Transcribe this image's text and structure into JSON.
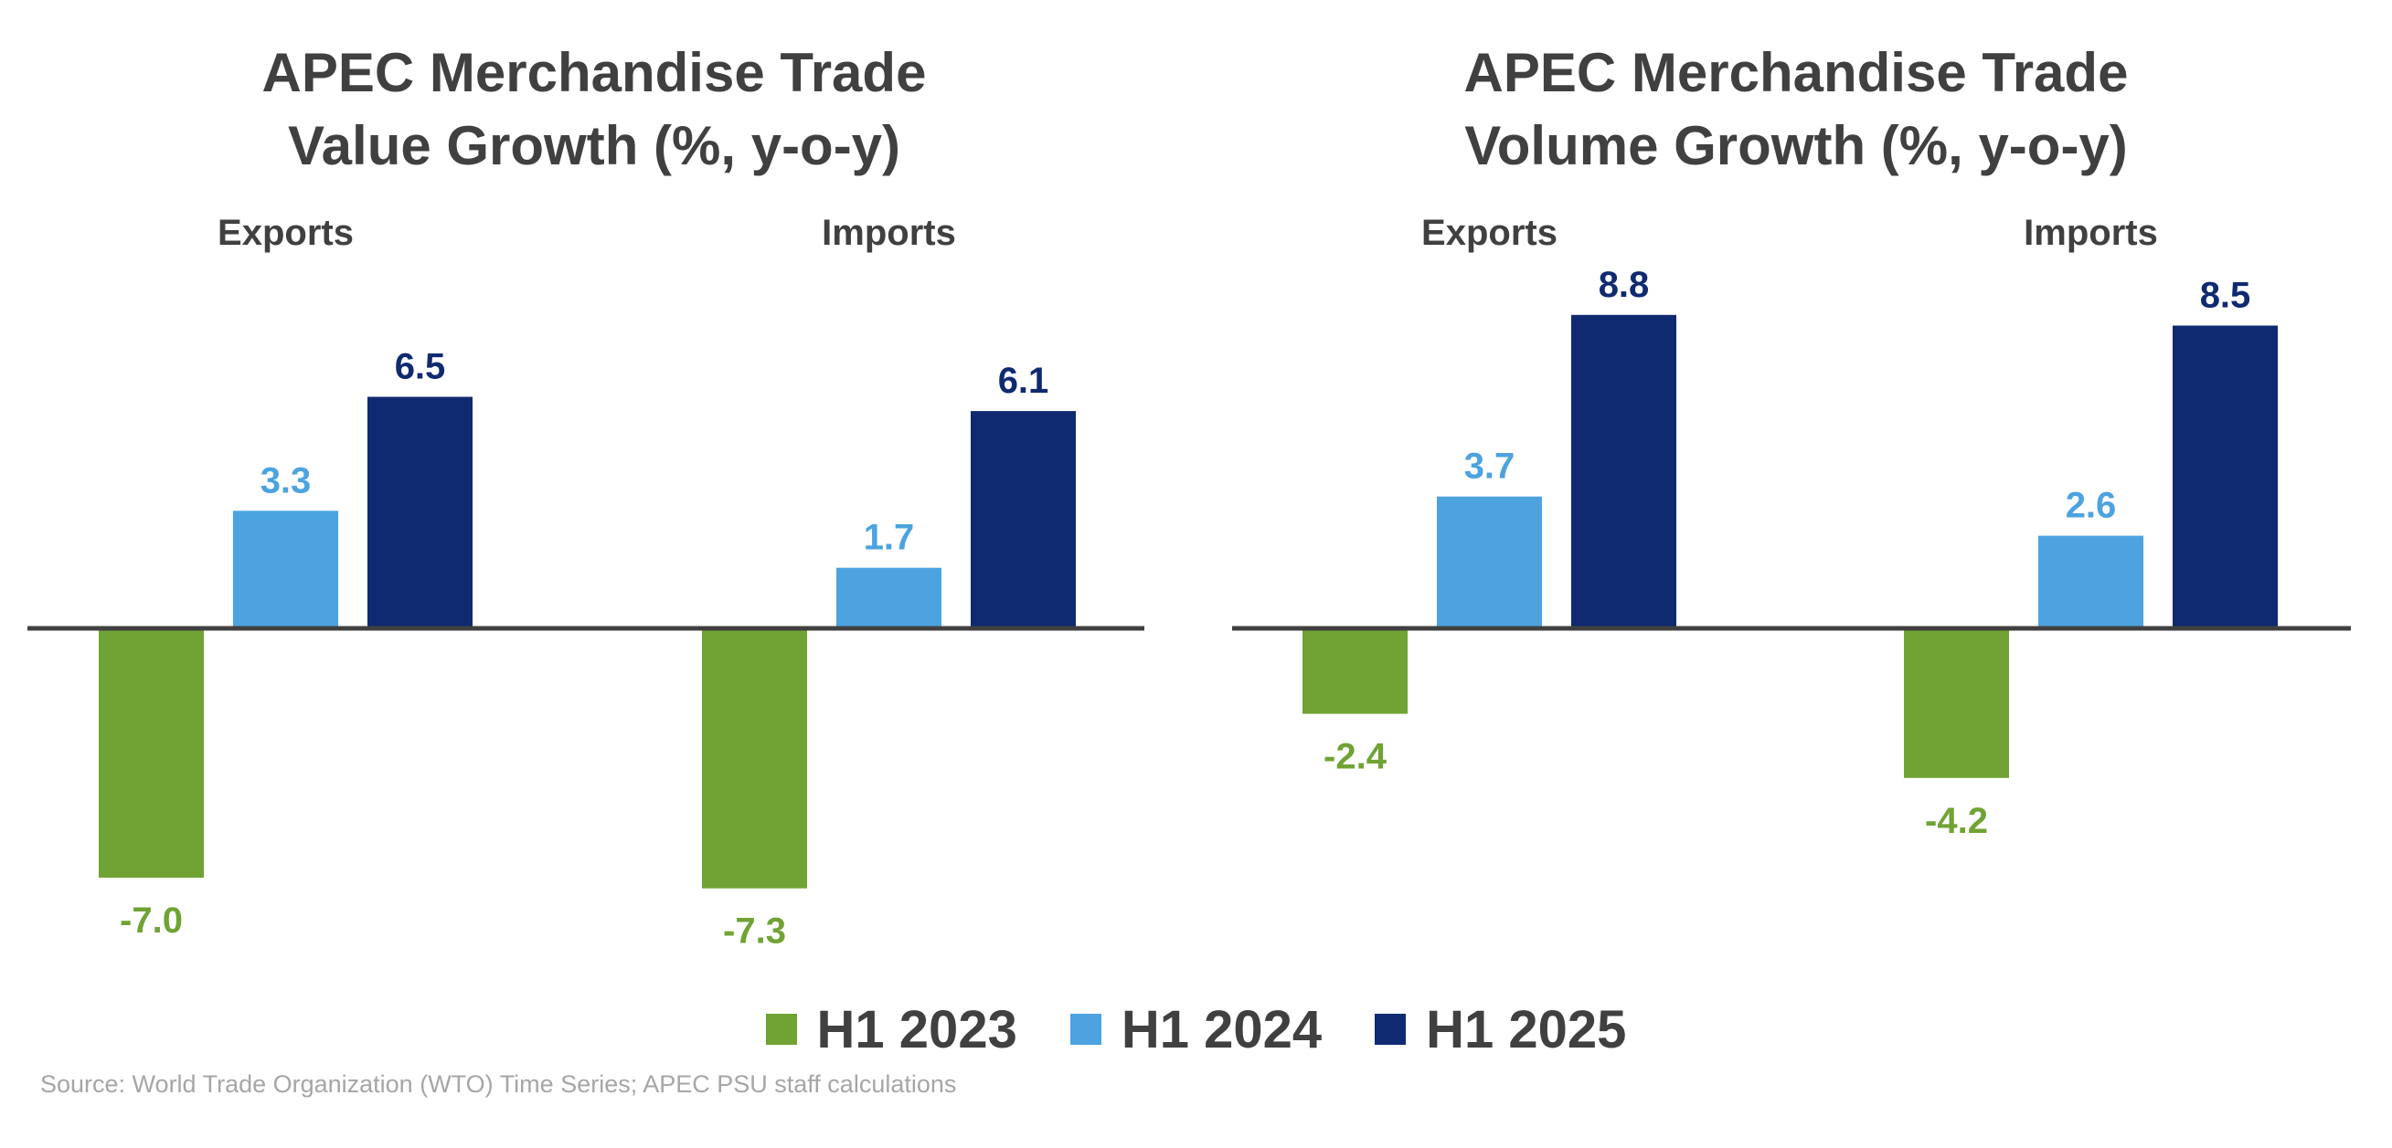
{
  "colors": {
    "H1 2023": "#70a334",
    "H1 2024": "#4ca3e0",
    "H1 2025": "#0f2a70",
    "axis": "#404040",
    "title": "#404040"
  },
  "chart_data": [
    {
      "type": "bar",
      "title_lines": [
        "APEC Merchandise Trade",
        "Value Growth (%, y-o-y)"
      ],
      "categories": [
        "Exports",
        "Imports"
      ],
      "series": [
        {
          "name": "H1 2023",
          "values": [
            -7.0,
            -7.3
          ]
        },
        {
          "name": "H1 2024",
          "values": [
            3.3,
            1.7
          ]
        },
        {
          "name": "H1 2025",
          "values": [
            6.5,
            6.1
          ]
        }
      ],
      "labels": [
        [
          "-7.0",
          "3.3",
          "6.5"
        ],
        [
          "-7.3",
          "1.7",
          "6.1"
        ]
      ],
      "ylim": [
        -10,
        10
      ]
    },
    {
      "type": "bar",
      "title_lines": [
        "APEC Merchandise Trade",
        "Volume Growth (%, y-o-y)"
      ],
      "categories": [
        "Exports",
        "Imports"
      ],
      "series": [
        {
          "name": "H1 2023",
          "values": [
            -2.4,
            -4.2
          ]
        },
        {
          "name": "H1 2024",
          "values": [
            3.7,
            2.6
          ]
        },
        {
          "name": "H1 2025",
          "values": [
            8.8,
            8.5
          ]
        }
      ],
      "labels": [
        [
          "-2.4",
          "3.7",
          "8.8"
        ],
        [
          "-4.2",
          "2.6",
          "8.5"
        ]
      ],
      "ylim": [
        -10,
        10
      ]
    }
  ],
  "legend": [
    {
      "name": "H1 2023",
      "label": "H1  2023"
    },
    {
      "name": "H1 2024",
      "label": "H1  2024"
    },
    {
      "name": "H1 2025",
      "label": "H1  2025"
    }
  ],
  "source": "Source: World Trade Organization (WTO) Time Series; APEC PSU staff calculations"
}
